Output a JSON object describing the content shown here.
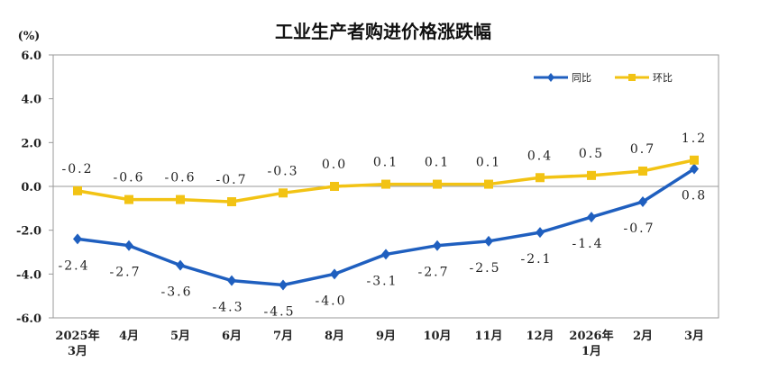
{
  "chart_data": {
    "type": "line",
    "title": "工业生产者购进价格涨跌幅",
    "unit": "(%)",
    "categories": [
      [
        "2025年",
        "3月"
      ],
      [
        "4月"
      ],
      [
        "5月"
      ],
      [
        "6月"
      ],
      [
        "7月"
      ],
      [
        "8月"
      ],
      [
        "9月"
      ],
      [
        "10月"
      ],
      [
        "11月"
      ],
      [
        "12月"
      ],
      [
        "2026年",
        "1月"
      ],
      [
        "2月"
      ],
      [
        "3月"
      ]
    ],
    "ylim": [
      -6.0,
      6.0
    ],
    "yticks": [
      "6.0",
      "4.0",
      "2.0",
      "0.0",
      "-2.0",
      "-4.0",
      "-6.0"
    ],
    "ytick_values": [
      6,
      4,
      2,
      0,
      -2,
      -4,
      -6
    ],
    "grid": false,
    "legend_position": "top-right",
    "series": [
      {
        "name": "同比",
        "color": "#1f5fbf",
        "marker": "diamond",
        "values": [
          -2.4,
          -2.7,
          -3.6,
          -4.3,
          -4.5,
          -4.0,
          -3.1,
          -2.7,
          -2.5,
          -2.1,
          -1.4,
          -0.7,
          0.8
        ],
        "labels": [
          "-2.4",
          "-2.7",
          "-3.6",
          "-4.3",
          "-4.5",
          "-4.0",
          "-3.1",
          "-2.7",
          "-2.5",
          "-2.1",
          "-1.4",
          "-0.7",
          "0.8"
        ]
      },
      {
        "name": "环比",
        "color": "#f2c314",
        "marker": "square",
        "values": [
          -0.2,
          -0.6,
          -0.6,
          -0.7,
          -0.3,
          0.0,
          0.1,
          0.1,
          0.1,
          0.4,
          0.5,
          0.7,
          1.2
        ],
        "labels": [
          "-0.2",
          "-0.6",
          "-0.6",
          "-0.7",
          "-0.3",
          "0.0",
          "0.1",
          "0.1",
          "0.1",
          "0.4",
          "0.5",
          "0.7",
          "1.2"
        ]
      }
    ]
  }
}
